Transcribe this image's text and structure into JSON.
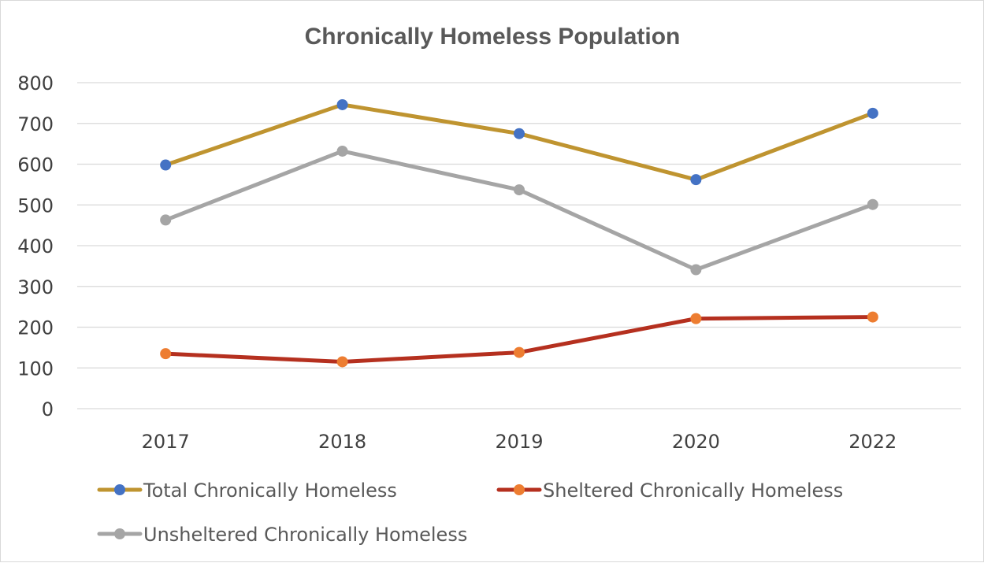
{
  "chart_data": {
    "type": "line",
    "title": "Chronically Homeless Population",
    "xlabel": "",
    "ylabel": "",
    "categories": [
      "2017",
      "2018",
      "2019",
      "2020",
      "2022"
    ],
    "ylim": [
      0,
      800
    ],
    "yticks": [
      "0",
      "100",
      "200",
      "300",
      "400",
      "500",
      "600",
      "700",
      "800"
    ],
    "grid": "horizontal",
    "legend_position": "bottom",
    "series": [
      {
        "name": "Total Chronically Homeless",
        "values": [
          598,
          746,
          675,
          562,
          725
        ],
        "line_color": "#bf9430",
        "marker_color": "#4472c4"
      },
      {
        "name": "Sheltered Chronically Homeless",
        "values": [
          135,
          115,
          138,
          221,
          225
        ],
        "line_color": "#b5301f",
        "marker_color": "#ed7d31"
      },
      {
        "name": "Unsheltered Chronically Homeless",
        "values": [
          463,
          632,
          537,
          341,
          501
        ],
        "line_color": "#a5a5a5",
        "marker_color": "#a5a5a5"
      }
    ]
  }
}
